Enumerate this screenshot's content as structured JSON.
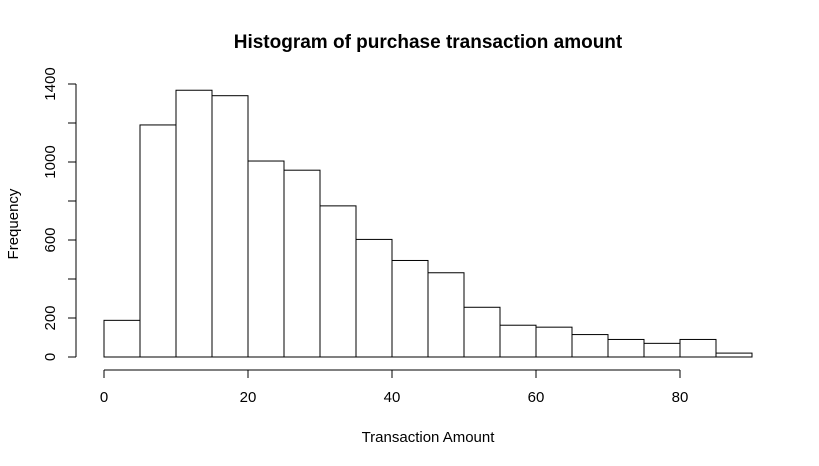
{
  "chart_data": {
    "type": "bar",
    "title": "Histogram of purchase transaction amount",
    "xlabel": "Transaction Amount",
    "ylabel": "Frequency",
    "bin_width": 5,
    "bins": [
      {
        "start": 0,
        "end": 5,
        "count": 188
      },
      {
        "start": 5,
        "end": 10,
        "count": 1190
      },
      {
        "start": 10,
        "end": 15,
        "count": 1368
      },
      {
        "start": 15,
        "end": 20,
        "count": 1340
      },
      {
        "start": 20,
        "end": 25,
        "count": 1005
      },
      {
        "start": 25,
        "end": 30,
        "count": 958
      },
      {
        "start": 30,
        "end": 35,
        "count": 775
      },
      {
        "start": 35,
        "end": 40,
        "count": 603
      },
      {
        "start": 40,
        "end": 45,
        "count": 495
      },
      {
        "start": 45,
        "end": 50,
        "count": 432
      },
      {
        "start": 50,
        "end": 55,
        "count": 255
      },
      {
        "start": 55,
        "end": 60,
        "count": 163
      },
      {
        "start": 60,
        "end": 65,
        "count": 153
      },
      {
        "start": 65,
        "end": 70,
        "count": 115
      },
      {
        "start": 70,
        "end": 75,
        "count": 90
      },
      {
        "start": 75,
        "end": 80,
        "count": 70
      },
      {
        "start": 80,
        "end": 85,
        "count": 90
      },
      {
        "start": 85,
        "end": 90,
        "count": 20
      }
    ],
    "xlim": [
      0,
      90
    ],
    "ylim": [
      0,
      1400
    ],
    "x_ticks": [
      0,
      20,
      40,
      60,
      80
    ],
    "x_tick_labels": [
      "0",
      "20",
      "40",
      "60",
      "80"
    ],
    "y_ticks": [
      0,
      200,
      400,
      600,
      800,
      1000,
      1200,
      1400
    ],
    "y_tick_labels": [
      "0",
      "200",
      "",
      "600",
      "",
      "1000",
      "",
      "1400"
    ],
    "grid": false,
    "colors": {
      "bar_fill": "#ffffff",
      "bar_stroke": "#000000"
    }
  }
}
